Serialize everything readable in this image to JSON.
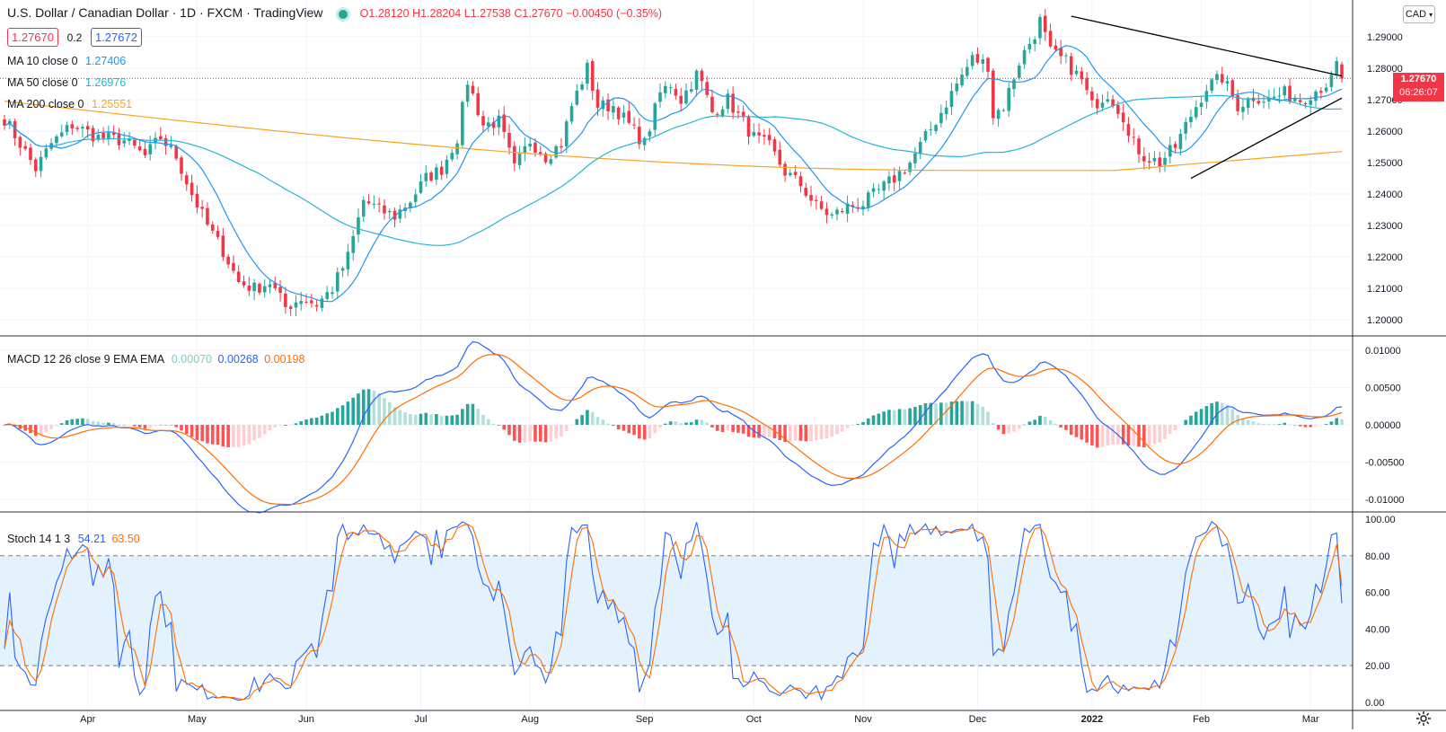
{
  "header": {
    "symbol": "U.S. Dollar / Canadian Dollar · 1D · FXCM · TradingView",
    "ohlc": "O1.28120  H1.28204  L1.27538  C1.27670  −0.00450 (−0.35%)",
    "bid": "1.27670",
    "spread": "0.2",
    "ask": "1.27672"
  },
  "indicators": {
    "ma10": {
      "label": "MA 10 close 0",
      "value": "1.27406"
    },
    "ma50": {
      "label": "MA 50 close 0",
      "value": "1.26976"
    },
    "ma200": {
      "label": "MA 200 close 0",
      "value": "1.25551"
    },
    "macd": {
      "label": "MACD 12 26 close 9 EMA EMA",
      "hist": "0.00070",
      "macd": "0.00268",
      "signal": "0.00198"
    },
    "stoch": {
      "label": "Stoch 14 1 3",
      "k": "54.21",
      "d": "63.50"
    }
  },
  "price_scale": {
    "currency": "CAD",
    "last_price": "1.27670",
    "countdown": "06:26:07"
  },
  "colors": {
    "up": "#26a69a",
    "down": "#f23645",
    "ma10": "#2196f3",
    "ma50": "#26b5d4",
    "ma200": "#f5a623",
    "macd": "#2962ff",
    "signal": "#ff6d00",
    "hist_up_strong": "#26a69a",
    "hist_up_weak": "#b2dfdb",
    "hist_down_strong": "#ff5252",
    "hist_down_weak": "#ffcdd2",
    "stoch_k": "#2962ff",
    "stoch_d": "#ff6d00",
    "stoch_band": "#e3f2fd"
  },
  "chart_data": [
    {
      "type": "candlestick",
      "title": "U.S. Dollar / Canadian Dollar · 1D · FXCM",
      "y_ticks": [
        "1.29000",
        "1.28000",
        "1.27000",
        "1.26000",
        "1.25000",
        "1.24000",
        "1.23000",
        "1.22000",
        "1.21000",
        "1.20000"
      ],
      "y_range": [
        1.1955,
        1.3005
      ],
      "x_ticks": [
        "Apr",
        "May",
        "Jun",
        "Jul",
        "Aug",
        "Sep",
        "Oct",
        "Nov",
        "Dec",
        "2022",
        "Feb",
        "Mar"
      ],
      "close_anchors": [
        [
          0,
          1.264
        ],
        [
          6,
          1.248
        ],
        [
          9,
          1.256
        ],
        [
          13,
          1.262
        ],
        [
          18,
          1.258
        ],
        [
          23,
          1.257
        ],
        [
          27,
          1.252
        ],
        [
          30,
          1.258
        ],
        [
          33,
          1.252
        ],
        [
          36,
          1.24
        ],
        [
          39,
          1.23
        ],
        [
          42,
          1.222
        ],
        [
          45,
          1.212
        ],
        [
          48,
          1.21
        ],
        [
          51,
          1.212
        ],
        [
          54,
          1.204
        ],
        [
          57,
          1.207
        ],
        [
          60,
          1.205
        ],
        [
          63,
          1.21
        ],
        [
          66,
          1.22
        ],
        [
          69,
          1.238
        ],
        [
          72,
          1.235
        ],
        [
          75,
          1.233
        ],
        [
          78,
          1.238
        ],
        [
          81,
          1.245
        ],
        [
          84,
          1.248
        ],
        [
          87,
          1.258
        ],
        [
          89,
          1.276
        ],
        [
          92,
          1.262
        ],
        [
          95,
          1.263
        ],
        [
          98,
          1.248
        ],
        [
          101,
          1.257
        ],
        [
          104,
          1.252
        ],
        [
          107,
          1.256
        ],
        [
          109,
          1.268
        ],
        [
          112,
          1.28
        ],
        [
          114,
          1.268
        ],
        [
          117,
          1.268
        ],
        [
          120,
          1.262
        ],
        [
          123,
          1.256
        ],
        [
          126,
          1.272
        ],
        [
          128,
          1.275
        ],
        [
          130,
          1.27
        ],
        [
          133,
          1.278
        ],
        [
          134,
          1.275
        ],
        [
          136,
          1.266
        ],
        [
          139,
          1.27
        ],
        [
          141,
          1.265
        ],
        [
          144,
          1.258
        ],
        [
          147,
          1.255
        ],
        [
          150,
          1.247
        ],
        [
          153,
          1.243
        ],
        [
          156,
          1.236
        ],
        [
          159,
          1.233
        ],
        [
          162,
          1.236
        ],
        [
          165,
          1.237
        ],
        [
          168,
          1.241
        ],
        [
          171,
          1.245
        ],
        [
          174,
          1.25
        ],
        [
          177,
          1.258
        ],
        [
          180,
          1.266
        ],
        [
          183,
          1.275
        ],
        [
          186,
          1.283
        ],
        [
          189,
          1.281
        ],
        [
          190,
          1.265
        ],
        [
          192,
          1.268
        ],
        [
          195,
          1.282
        ],
        [
          198,
          1.291
        ],
        [
          199,
          1.295
        ],
        [
          201,
          1.285
        ],
        [
          204,
          1.282
        ],
        [
          207,
          1.276
        ],
        [
          209,
          1.268
        ],
        [
          212,
          1.272
        ],
        [
          215,
          1.265
        ],
        [
          216,
          1.258
        ],
        [
          219,
          1.252
        ],
        [
          222,
          1.25
        ],
        [
          225,
          1.255
        ],
        [
          228,
          1.265
        ],
        [
          231,
          1.274
        ],
        [
          234,
          1.277
        ],
        [
          237,
          1.268
        ],
        [
          240,
          1.271
        ],
        [
          243,
          1.27
        ],
        [
          246,
          1.272
        ],
        [
          249,
          1.27
        ],
        [
          252,
          1.273
        ],
        [
          255,
          1.276
        ],
        [
          256,
          1.281
        ],
        [
          257,
          1.2767
        ]
      ],
      "series": [
        {
          "name": "MA 10 close 0",
          "last": 1.27406
        },
        {
          "name": "MA 50 close 0",
          "last": 1.26976
        },
        {
          "name": "MA 200 close 0",
          "last": 1.25551
        }
      ],
      "trendlines": [
        {
          "from": [
            205,
            1.2965
          ],
          "to": [
            257,
            1.2775
          ]
        },
        {
          "from": [
            228,
            1.245
          ],
          "to": [
            257,
            1.2705
          ]
        }
      ],
      "last_price": 1.2767
    },
    {
      "type": "line+histogram",
      "title": "MACD 12 26 close 9 EMA EMA",
      "y_ticks": [
        "0.01000",
        "0.00500",
        "0.00000",
        "-0.00500",
        "-0.01000"
      ],
      "y_range": [
        -0.0112,
        0.0112
      ],
      "series": [
        {
          "name": "MACD",
          "last": 0.00268
        },
        {
          "name": "Signal",
          "last": 0.00198
        },
        {
          "name": "Histogram",
          "last": 0.0007
        }
      ]
    },
    {
      "type": "line",
      "title": "Stoch 14 1 3",
      "y_ticks": [
        "100.00",
        "80.00",
        "60.00",
        "40.00",
        "20.00",
        "0.00"
      ],
      "y_range": [
        -3,
        100
      ],
      "bands": [
        20,
        80
      ],
      "series": [
        {
          "name": "%K",
          "last": 54.21
        },
        {
          "name": "%D",
          "last": 63.5
        }
      ]
    }
  ]
}
